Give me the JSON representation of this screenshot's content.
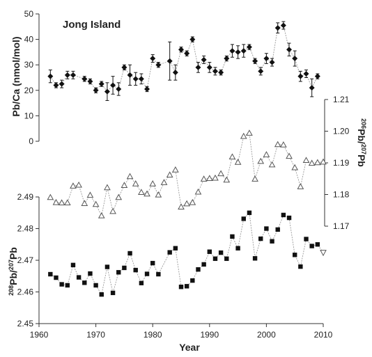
{
  "chart_data": [
    {
      "type": "scatter",
      "title": "Jong Island",
      "ylabel": "Pb/Ca (nmol/mol)",
      "ylim": [
        0,
        50
      ],
      "yticks": [
        0,
        10,
        20,
        30,
        40,
        50
      ],
      "marker": "filled-diamond",
      "error_bars": true,
      "connector": "dotted",
      "colors": {
        "marker": "#111111",
        "connector": "#999999"
      },
      "series": [
        {
          "name": "Pb/Ca",
          "x": [
            1962,
            1963,
            1964,
            1965,
            1966,
            1968,
            1969,
            1970,
            1971,
            1972,
            1973,
            1974,
            1975,
            1976,
            1977,
            1978,
            1979,
            1980,
            1981,
            1983,
            1984,
            1985,
            1986,
            1987,
            1988,
            1989,
            1990,
            1991,
            1992,
            1993,
            1994,
            1995,
            1996,
            1997,
            1998,
            1999,
            2000,
            2001,
            2002,
            2003,
            2004,
            2005,
            2006,
            2007,
            2008,
            2009
          ],
          "y": [
            25.5,
            22,
            22.5,
            26,
            26,
            24.5,
            23.5,
            20,
            22.5,
            19.5,
            22,
            20.5,
            29,
            26,
            24.5,
            24.5,
            20.5,
            32.5,
            30,
            31.5,
            27,
            36,
            34.5,
            40,
            29,
            32,
            29,
            27.5,
            27,
            32.5,
            35.5,
            35,
            35.5,
            37,
            31.5,
            27.5,
            32.5,
            31,
            44.5,
            45.5,
            36,
            32.5,
            25.5,
            26.5,
            21,
            25.5
          ],
          "error": [
            2.5,
            1,
            1.5,
            1.5,
            1.5,
            1,
            1,
            1,
            1,
            3.5,
            3.5,
            2.5,
            1,
            4,
            2.5,
            2,
            1,
            1.5,
            1,
            7.5,
            3,
            1,
            1,
            1,
            2,
            1.5,
            2,
            1.5,
            1,
            1,
            2.5,
            2.5,
            2.5,
            1,
            1,
            1.5,
            2,
            1.5,
            2,
            1.5,
            2.5,
            3,
            2,
            1.5,
            3.5,
            1
          ]
        }
      ]
    },
    {
      "type": "line",
      "ylabel": "206Pb/207Pb",
      "ylim": [
        1.17,
        1.21
      ],
      "yticks": [
        1.17,
        1.18,
        1.19,
        1.2,
        1.21
      ],
      "y_axis_side": "right",
      "marker": "open-triangle",
      "connector": "dotted",
      "colors": {
        "marker": "#555555",
        "connector": "#999999"
      },
      "series": [
        {
          "name": "206Pb/207Pb",
          "x": [
            1962,
            1963,
            1964,
            1965,
            1966,
            1967,
            1968,
            1969,
            1970,
            1971,
            1972,
            1973,
            1974,
            1975,
            1976,
            1977,
            1978,
            1979,
            1980,
            1981,
            1982,
            1983,
            1984,
            1985,
            1986,
            1987,
            1988,
            1989,
            1990,
            1991,
            1992,
            1993,
            1994,
            1995,
            1996,
            1997,
            1998,
            1999,
            2000,
            2001,
            2002,
            2003,
            2004,
            2005,
            2006,
            2007,
            2008,
            2009,
            2010
          ],
          "y": [
            1.1791,
            1.1775,
            1.1774,
            1.1774,
            1.1827,
            1.183,
            1.1772,
            1.1798,
            1.1769,
            1.1733,
            1.1822,
            1.1747,
            1.1791,
            1.1829,
            1.1857,
            1.1834,
            1.1807,
            1.1802,
            1.1834,
            1.1799,
            1.1838,
            1.1862,
            1.1878,
            1.1761,
            1.1771,
            1.1775,
            1.1808,
            1.1849,
            1.1851,
            1.1852,
            1.1866,
            1.1846,
            1.1919,
            1.1902,
            1.1984,
            1.1994,
            1.1849,
            1.1905,
            1.1926,
            1.1894,
            1.1958,
            1.1957,
            1.1921,
            1.1885,
            1.1825,
            1.1908,
            1.1899,
            1.1901,
            1.1903
          ]
        }
      ]
    },
    {
      "type": "line",
      "title": "",
      "xlabel": "Year",
      "ylabel": "208Pb/207Pb",
      "xlim": [
        1960,
        2010
      ],
      "xticks": [
        1960,
        1970,
        1980,
        1990,
        2000,
        2010
      ],
      "ylim": [
        2.45,
        2.49
      ],
      "yticks": [
        2.45,
        2.46,
        2.47,
        2.48,
        2.49
      ],
      "marker": "filled-square",
      "connector": "dotted",
      "colors": {
        "marker": "#111111",
        "connector": "#999999",
        "last_point": "#555555"
      },
      "series": [
        {
          "name": "208Pb/207Pb",
          "x": [
            1962,
            1963,
            1964,
            1965,
            1966,
            1967,
            1968,
            1969,
            1970,
            1971,
            1972,
            1973,
            1974,
            1975,
            1976,
            1977,
            1978,
            1979,
            1980,
            1981,
            1983,
            1984,
            1985,
            1986,
            1987,
            1988,
            1989,
            1990,
            1991,
            1992,
            1993,
            1994,
            1995,
            1996,
            1997,
            1998,
            1999,
            2000,
            2001,
            2002,
            2003,
            2004,
            2005,
            2006,
            2007,
            2008,
            2009,
            2010
          ],
          "y": [
            2.4656,
            2.4645,
            2.4624,
            2.4621,
            2.4685,
            2.4646,
            2.4629,
            2.4658,
            2.4621,
            2.4592,
            2.4679,
            2.4597,
            2.4662,
            2.4676,
            2.4722,
            2.4669,
            2.4628,
            2.4657,
            2.4691,
            2.4656,
            2.4725,
            2.4738,
            2.4616,
            2.4618,
            2.4636,
            2.4671,
            2.4687,
            2.4727,
            2.4705,
            2.4724,
            2.4705,
            2.4775,
            2.4738,
            2.4831,
            2.485,
            2.4706,
            2.4768,
            2.48,
            2.476,
            2.4797,
            2.4843,
            2.4834,
            2.4717,
            2.468,
            2.4767,
            2.4745,
            2.475,
            2.4724
          ]
        }
      ]
    }
  ]
}
